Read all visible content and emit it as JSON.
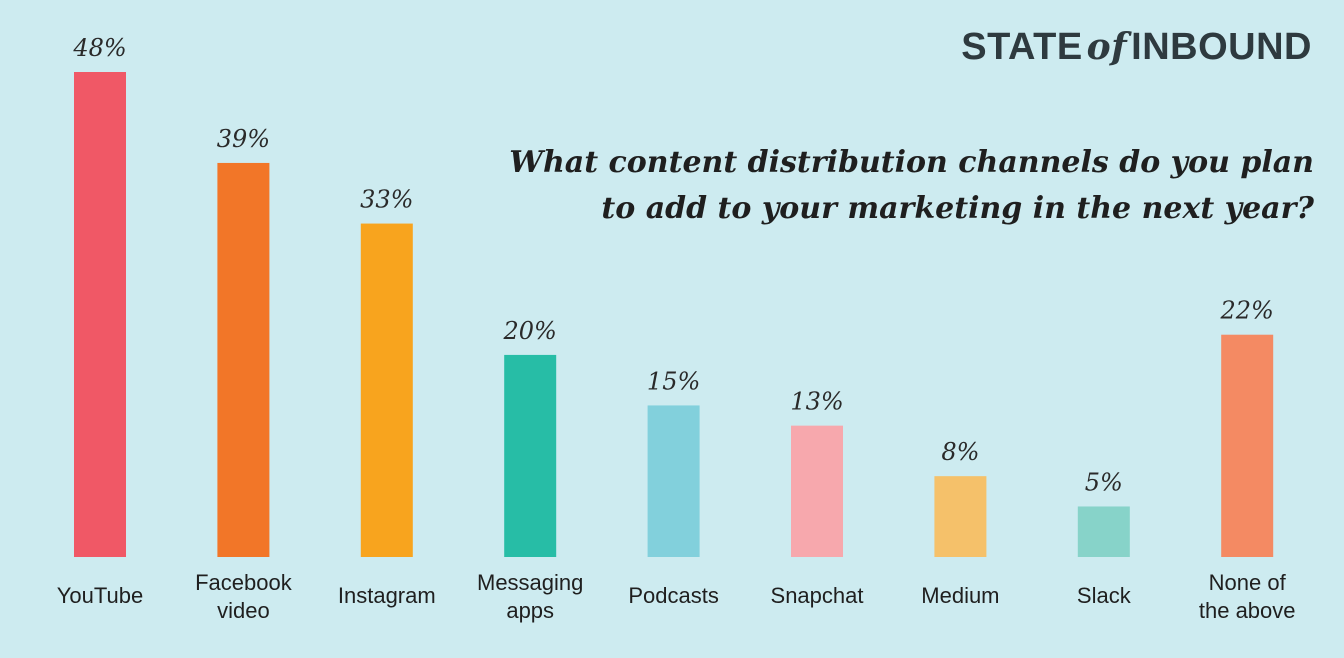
{
  "brand": {
    "state": "STATE",
    "of": "of",
    "inbound": "INBOUND"
  },
  "chart_data": {
    "type": "bar",
    "title": "What content distribution channels do you plan to add to your marketing in the next year?",
    "title_lines": [
      "What content distribution channels do you plan",
      "to add to your marketing in the next year?"
    ],
    "categories": [
      "YouTube",
      "Facebook video",
      "Instagram",
      "Messaging apps",
      "Podcasts",
      "Snapchat",
      "Medium",
      "Slack",
      "None of the above"
    ],
    "category_lines": [
      [
        "YouTube"
      ],
      [
        "Facebook",
        "video"
      ],
      [
        "Instagram"
      ],
      [
        "Messaging",
        "apps"
      ],
      [
        "Podcasts"
      ],
      [
        "Snapchat"
      ],
      [
        "Medium"
      ],
      [
        "Slack"
      ],
      [
        "None of",
        "the above"
      ]
    ],
    "values": [
      48,
      39,
      33,
      20,
      15,
      13,
      8,
      5,
      22
    ],
    "value_labels": [
      "48%",
      "39%",
      "33%",
      "20%",
      "15%",
      "13%",
      "8%",
      "5%",
      "22%"
    ],
    "colors": [
      "#f05866",
      "#f27628",
      "#f8a41e",
      "#27bda6",
      "#82d0dc",
      "#f7a8ad",
      "#f5c16a",
      "#87d3c9",
      "#f48a63"
    ],
    "xlabel": "",
    "ylabel": "",
    "ylim": [
      0,
      48
    ],
    "grid": false,
    "legend": "none"
  }
}
